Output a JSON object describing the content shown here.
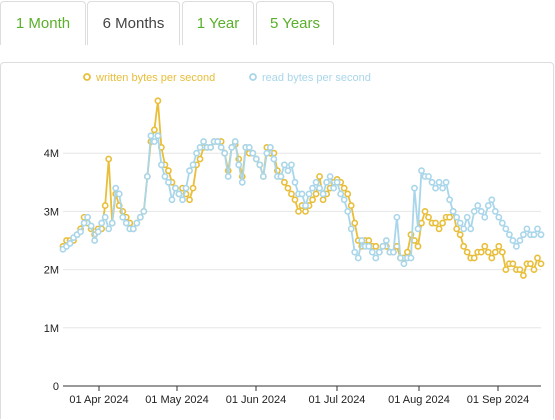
{
  "tabs": [
    {
      "label": "1 Month",
      "active": false
    },
    {
      "label": "6 Months",
      "active": true
    },
    {
      "label": "1 Year",
      "active": false
    },
    {
      "label": "5 Years",
      "active": false
    }
  ],
  "colors": {
    "tab_link": "#5ab02a",
    "written": "#e8be3a",
    "read": "#a9d6ea",
    "grid": "#e6e6e6",
    "axis": "#333333"
  },
  "chart_data": {
    "type": "line",
    "legend_position": "top-center",
    "grid": true,
    "y_ticks": [
      "0",
      "1M",
      "2M",
      "3M",
      "4M"
    ],
    "ylim": [
      0,
      5000000
    ],
    "x_ticks": [
      "01 Apr 2024",
      "01 May 2024",
      "01 Jun 2024",
      "01 Jul 2024",
      "01 Aug 2024",
      "01 Sep 2024"
    ],
    "series": [
      {
        "name": "written bytes per second",
        "values": [
          2400000,
          2500000,
          2500000,
          2500000,
          2600000,
          2700000,
          2900000,
          2800000,
          2700000,
          2600000,
          2700000,
          2700000,
          3100000,
          3900000,
          2800000,
          3300000,
          3100000,
          3000000,
          2900000,
          2800000,
          2700000,
          2800000,
          2900000,
          3000000,
          3600000,
          4200000,
          4400000,
          4900000,
          4100000,
          3800000,
          3700000,
          3500000,
          3400000,
          3300000,
          3400000,
          3300000,
          3200000,
          3400000,
          3800000,
          3900000,
          4100000,
          4100000,
          4100000,
          4200000,
          4200000,
          4200000,
          4000000,
          3700000,
          4100000,
          4150000,
          3900000,
          3600000,
          4100000,
          4000000,
          4000000,
          3900000,
          3800000,
          3600000,
          4100000,
          4000000,
          4000000,
          3700000,
          3600000,
          3500000,
          3400000,
          3300000,
          3200000,
          3000000,
          3100000,
          3000000,
          3100000,
          3200000,
          3300000,
          3600000,
          3200000,
          3300000,
          3400000,
          3500000,
          3550000,
          3500000,
          3400000,
          3300000,
          3100000,
          2800000,
          2500000,
          2400000,
          2500000,
          2500000,
          2400000,
          2400000,
          2300000,
          2400000,
          2400000,
          2300000,
          2300000,
          2400000,
          2200000,
          2200000,
          2300000,
          2600000,
          2500000,
          2400000,
          2800000,
          3000000,
          2900000,
          2800000,
          2800000,
          2700000,
          2800000,
          2900000,
          2900000,
          3000000,
          2700000,
          2600000,
          2400000,
          2300000,
          2200000,
          2200000,
          2300000,
          2300000,
          2400000,
          2300000,
          2200000,
          2300000,
          2400000,
          2300000,
          2000000,
          2100000,
          2100000,
          2000000,
          2000000,
          1900000,
          2100000,
          2100000,
          2000000,
          2200000,
          2100000
        ]
      },
      {
        "name": "read bytes per second",
        "values": [
          2350000,
          2400000,
          2450000,
          2550000,
          2600000,
          2650000,
          2800000,
          2900000,
          2750000,
          2500000,
          2650000,
          2800000,
          2900000,
          2700000,
          2800000,
          3400000,
          3300000,
          2900000,
          2800000,
          2700000,
          2700000,
          2800000,
          2900000,
          3000000,
          3600000,
          4300000,
          4200000,
          4300000,
          3800000,
          3600000,
          3500000,
          3200000,
          3400000,
          3300000,
          3200000,
          3400000,
          3700000,
          3800000,
          4000000,
          4100000,
          4200000,
          4100000,
          4100000,
          4200000,
          4200000,
          4100000,
          4000000,
          3600000,
          4100000,
          4200000,
          3800000,
          3500000,
          4100000,
          4100000,
          4000000,
          3900000,
          3800000,
          3600000,
          4000000,
          4100000,
          3900000,
          3600000,
          3600000,
          3800000,
          3700000,
          3800000,
          3500000,
          3300000,
          3300000,
          3100000,
          3300000,
          3400000,
          3500000,
          3400000,
          3300000,
          3500000,
          3600000,
          3400000,
          3500000,
          3300000,
          3200000,
          3000000,
          2700000,
          2300000,
          2200000,
          2500000,
          2400000,
          2400000,
          2300000,
          2200000,
          2300000,
          2400000,
          2500000,
          2300000,
          2300000,
          2900000,
          2200000,
          2100000,
          2200000,
          2200000,
          3400000,
          2700000,
          3700000,
          3600000,
          3600000,
          3500000,
          3400000,
          3500000,
          3400000,
          3500000,
          3200000,
          3000000,
          2900000,
          2800000,
          2700000,
          2900000,
          2700000,
          3000000,
          3100000,
          3000000,
          2900000,
          3100000,
          3200000,
          3000000,
          2900000,
          2800000,
          2700000,
          2600000,
          2500000,
          2400000,
          2500000,
          2600000,
          2700000,
          2600000,
          2600000,
          2700000,
          2600000
        ]
      }
    ]
  }
}
